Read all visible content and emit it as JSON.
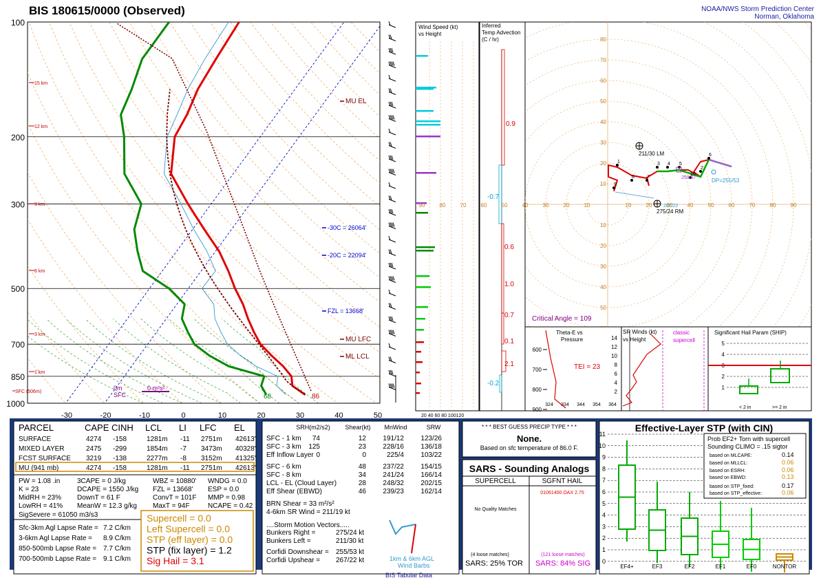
{
  "header": {
    "title": "BIS   180615/0000  (Observed)",
    "org_line1": "NOAA/NWS Storm Prediction Center",
    "org_line2": "Norman, Oklahoma"
  },
  "skewt": {
    "pressure_labels": [
      {
        "p": 100,
        "label": "100"
      },
      {
        "p": 200,
        "label": "200"
      },
      {
        "p": 300,
        "label": "300"
      },
      {
        "p": 500,
        "label": "500"
      },
      {
        "p": 700,
        "label": "700"
      },
      {
        "p": 850,
        "label": "850"
      },
      {
        "p": 1000,
        "label": "1000"
      }
    ],
    "height_labels": [
      "15 km",
      "12 km",
      "9 km",
      "6 km",
      "3 km",
      "1 km",
      "SFC (506m)"
    ],
    "temp_ticks": [
      "-30",
      "-20",
      "-10",
      "0",
      "10",
      "20",
      "30",
      "40",
      "50"
    ],
    "annotations": {
      "mu_el": "MU EL",
      "minus30": "-30C = 26064'",
      "minus20": "-20C = 22094'",
      "fzl": "FZL = 13668'",
      "mu_lfc": "MU LFC",
      "ml_lcl": "ML LCL",
      "sfc_0m": "0m",
      "sfc_sfc": "SFC",
      "srh_0": "0 m²s²",
      "td_sfc": "68",
      "t_sfc": "86"
    },
    "colors": {
      "temp": "#e00000",
      "dewp": "#008800",
      "parcel": "#7a0000",
      "wetbulb": "#3399cc"
    }
  },
  "chart_data": [
    {
      "type": "line",
      "title": "BIS 180615/0000 (Observed)",
      "xlabel": "",
      "ylabel": "",
      "ylim": [
        1000,
        100
      ],
      "series": [
        {
          "name": "Temperature",
          "pressure": [
            950,
            900,
            850,
            800,
            750,
            700,
            650,
            600,
            550,
            500,
            450,
            400,
            350,
            300,
            250,
            200,
            175,
            150,
            125,
            100
          ],
          "values": [
            30,
            25,
            23,
            19,
            14,
            9,
            5,
            1,
            -3,
            -8,
            -13,
            -19,
            -27,
            -36,
            -46,
            -52,
            -53,
            -55,
            -56,
            -57
          ]
        },
        {
          "name": "Dewpoint",
          "pressure": [
            950,
            900,
            850,
            800,
            750,
            700,
            650,
            600,
            550,
            500,
            450,
            400,
            350,
            300,
            250,
            200,
            175,
            150,
            125,
            100
          ],
          "values": [
            20,
            17,
            16,
            5,
            -2,
            -8,
            -12,
            -16,
            -18,
            -25,
            -35,
            -40,
            -45,
            -48,
            -58,
            -65,
            -70,
            -72,
            -75,
            -75
          ]
        }
      ]
    }
  ],
  "wind_speed_panel": {
    "title1": "Wind Speed (kt)",
    "title2": "vs Height",
    "axis": "20 40 60 80 100120"
  },
  "advection_panel": {
    "title1": "Inferred",
    "title2": "Temp Advection",
    "title3": "(C / hr)",
    "values": [
      "0.9",
      "-0.7",
      "0.6",
      "1.0",
      "0.7",
      "0.1",
      "2.1",
      "-0.2"
    ]
  },
  "hodograph": {
    "ring_labels": [
      "10",
      "20",
      "30",
      "40",
      "50",
      "60",
      "70",
      "80",
      "90"
    ],
    "lm": "211/30 LM",
    "rm": "275/24 RM",
    "mean": "267/22",
    "dp": "DP=255/53",
    "sr": "259/37",
    "critical_angle": "Critical Angle = 109",
    "points": [
      "1",
      "2",
      "3",
      "4",
      "5",
      "6",
      "9",
      "8",
      "7",
      "10"
    ]
  },
  "theta_panel": {
    "title1": "Theta-E vs",
    "title2": "Pressure",
    "tei": "TEI = 23",
    "x_ticks": [
      "324",
      "334",
      "344",
      "354",
      "364"
    ],
    "y_ticks": [
      "600",
      "700",
      "800",
      "900"
    ]
  },
  "srwind_panel": {
    "title1": "SR Winds (kt)",
    "title2": "vs Height",
    "label1": "classic",
    "label2": "supercell",
    "ticks": [
      "14",
      "12",
      "10",
      "8",
      "6",
      "4",
      "2"
    ]
  },
  "ship_panel": {
    "title": "Significant Hail Param (SHIP)",
    "ticks": [
      "5",
      "4",
      "3",
      "2",
      "1"
    ],
    "cat1": "< 2 in",
    "cat2": ">= 2 in"
  },
  "parcel_table": {
    "headers": [
      "PARCEL",
      "CAPE",
      "CINH",
      "LCL",
      "LI",
      "LFC",
      "EL"
    ],
    "rows": [
      [
        "SURFACE",
        "4274",
        "-158",
        "1281m",
        "-11",
        "2751m",
        "42613'"
      ],
      [
        "MIXED LAYER",
        "2475",
        "-299",
        "1854m",
        "-7",
        "3473m",
        "40328'"
      ],
      [
        "FCST SURFACE",
        "3219",
        "-138",
        "2277m",
        "-8",
        "3152m",
        "41325'"
      ],
      [
        "MU  (941 mb)",
        "4274",
        "-158",
        "1281m",
        "-11",
        "2751m",
        "42613'"
      ]
    ],
    "misc": [
      [
        "PW = 1.08 .in",
        "3CAPE = 0 J/kg",
        "WBZ = 10880'",
        "WNDG = 0.0"
      ],
      [
        "K = 23",
        "DCAPE = 1550 J/kg",
        "FZL = 13668'",
        "ESP = 0.0"
      ],
      [
        "MidRH = 23%",
        "DownT = 61 F",
        "ConvT = 101F",
        "MMP = 0.98"
      ],
      [
        "LowRH = 41%",
        "MeanW = 12.3 g/kg",
        "MaxT = 94F",
        "NCAPE = 0.42"
      ]
    ],
    "sigsevere": "SigSevere = 61050 m3/s3",
    "lapse": [
      [
        "Sfc-3km Agl Lapse Rate =",
        "7.2 C/km"
      ],
      [
        "3-6km Agl Lapse Rate =",
        "8.9 C/km"
      ],
      [
        "850-500mb Lapse Rate =",
        "7.7 C/km"
      ],
      [
        "700-500mb Lapse Rate =",
        "9.1 C/km"
      ]
    ],
    "composites": [
      {
        "label": "Supercell = 0.0",
        "color": "#cc8800"
      },
      {
        "label": "Left Supercell = 0.0",
        "color": "#cc8800"
      },
      {
        "label": "STP (eff layer) = 0.0",
        "color": "#cc8800"
      },
      {
        "label": "STP (fix layer) = 1.2",
        "color": "#000000"
      },
      {
        "label": "Sig Hail = 3.1",
        "color": "#dd0000"
      }
    ]
  },
  "kinematics": {
    "headers": [
      "SRH(m2/s2)",
      "Shear(kt)",
      "MnWind",
      "SRW"
    ],
    "rows": [
      [
        "SFC - 1 km",
        "74",
        "12",
        "191/12",
        "123/26"
      ],
      [
        "SFC - 3 km",
        "125",
        "23",
        "228/16",
        "136/18"
      ],
      [
        "Eff Inflow Layer",
        "0",
        "0",
        "225/4",
        "103/22"
      ],
      [
        "SFC - 6 km",
        "48",
        "237/22",
        "154/15",
        ""
      ],
      [
        "SFC - 8 km",
        "34",
        "241/24",
        "166/14",
        ""
      ],
      [
        "LCL - EL (Cloud Layer)",
        "28",
        "248/32",
        "202/15",
        ""
      ],
      [
        "Eff Shear (EBWD)",
        "46",
        "239/23",
        "162/14",
        ""
      ]
    ],
    "brn": "BRN Shear = 33 m²/s²",
    "sr_wind": "4-6km SR Wind =       211/19 kt",
    "storm_motion": "....Storm Motion Vectors.....",
    "bunkers_right": [
      "Bunkers Right =",
      "275/24 kt"
    ],
    "bunkers_left": [
      "Bunkers Left =",
      "211/30 kt"
    ],
    "corfidi_down": [
      "Corfidi Downshear =",
      "255/53 kt"
    ],
    "corfidi_up": [
      "Corfidi Upshear =",
      "267/22 kt"
    ],
    "mini_hodo_label1": "1km & 6km AGL",
    "mini_hodo_label2": "Wind Barbs"
  },
  "precip": {
    "title": "* * * BEST GUESS PRECIP TYPE * * *",
    "value": "None.",
    "basis": "Based on sfc temperature of 86.0 F."
  },
  "sars": {
    "title": "SARS - Sounding Analogs",
    "col1": "SUPERCELL",
    "col2": "SGFNT HAIL",
    "hail_match": "01061400.OAX  2.75",
    "no_match": "No Quality Matches",
    "loose1": "(4 loose matches)",
    "loose2": "(121 loose matches)",
    "tor": "SARS: 25% TOR",
    "sig": "SARS: 84% SIG"
  },
  "stp": {
    "title": "Effective-Layer STP (with CIN)",
    "prob_title1": "Prob EF2+ Torn with supercell",
    "prob_title2": "Sounding CLIMO = .15 sigtor",
    "rows": [
      [
        "based on MLCAPE:",
        "0.14",
        "#000000"
      ],
      [
        "based on MLLCL:",
        "0.06",
        "#cc8800"
      ],
      [
        "based on ESRH:",
        "0.06",
        "#cc8800"
      ],
      [
        "based on EBWD:",
        "0.13",
        "#cc8800"
      ],
      [
        "based on STP_fixed:",
        "0.17",
        "#000000"
      ],
      [
        "based on STP_effective:",
        "0.06",
        "#cc8800"
      ]
    ],
    "y_ticks": [
      "11",
      "10",
      "9",
      "8",
      "7",
      "6",
      "5",
      "4",
      "3",
      "2",
      "1",
      "0"
    ],
    "categories": [
      "EF4+",
      "EF3",
      "EF2",
      "EF1",
      "EF0",
      "NONTOR"
    ]
  },
  "footer": "BIS Tabular Data"
}
